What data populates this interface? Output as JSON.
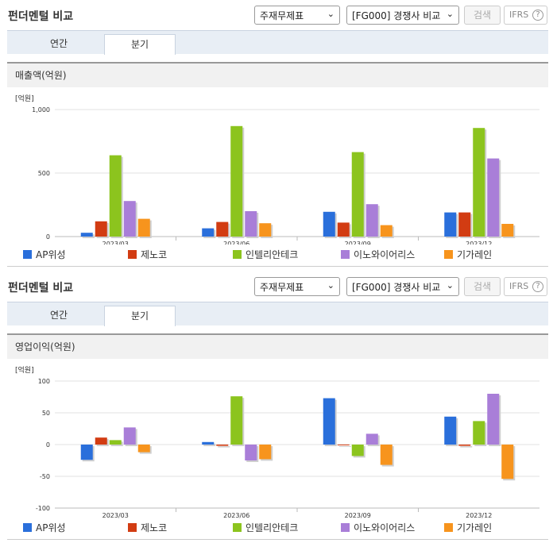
{
  "header": {
    "title": "펀더멘털 비교",
    "statement_select": "주재무제표",
    "compare_select": "[FG000] 경쟁사 비교",
    "search_label": "검색",
    "ifrs_label": "IFRS",
    "help_label": "?"
  },
  "tabs": {
    "annual": "연간",
    "quarter": "분기"
  },
  "colors": [
    "#2a6fdb",
    "#d23c12",
    "#8cc41e",
    "#a97ed8",
    "#f7941d"
  ],
  "legend": [
    "AP위성",
    "제노코",
    "인텔리안테크",
    "이노와이어리스",
    "기가레인"
  ],
  "chart1": {
    "heading": "매출액(억원)",
    "unit": "[억원]"
  },
  "chart2": {
    "heading": "영업이익(억원)",
    "unit": "[억원]"
  },
  "chart_data": [
    {
      "type": "bar",
      "title": "매출액(억원)",
      "categories": [
        "2023/03",
        "2023/06",
        "2023/09",
        "2023/12"
      ],
      "yticks": [
        0,
        500,
        1000
      ],
      "ylim": [
        0,
        1000
      ],
      "series": [
        {
          "name": "AP위성",
          "values": [
            30,
            65,
            195,
            190
          ]
        },
        {
          "name": "제노코",
          "values": [
            120,
            115,
            110,
            190
          ]
        },
        {
          "name": "인텔리안테크",
          "values": [
            640,
            870,
            665,
            855
          ]
        },
        {
          "name": "이노와이어리스",
          "values": [
            280,
            200,
            255,
            615
          ]
        },
        {
          "name": "기가레인",
          "values": [
            140,
            105,
            90,
            100
          ]
        }
      ]
    },
    {
      "type": "bar",
      "title": "영업이익(억원)",
      "categories": [
        "2023/03",
        "2023/06",
        "2023/09",
        "2023/12"
      ],
      "yticks": [
        -100,
        -50,
        0,
        50,
        100
      ],
      "ylim": [
        -100,
        100
      ],
      "series": [
        {
          "name": "AP위성",
          "values": [
            -24,
            4,
            73,
            44
          ]
        },
        {
          "name": "제노코",
          "values": [
            11,
            -2,
            0,
            -2
          ]
        },
        {
          "name": "인텔리안테크",
          "values": [
            7,
            76,
            -18,
            37
          ]
        },
        {
          "name": "이노와이어리스",
          "values": [
            27,
            -25,
            17,
            80
          ]
        },
        {
          "name": "기가레인",
          "values": [
            -12,
            -23,
            -32,
            -54
          ]
        }
      ]
    }
  ]
}
